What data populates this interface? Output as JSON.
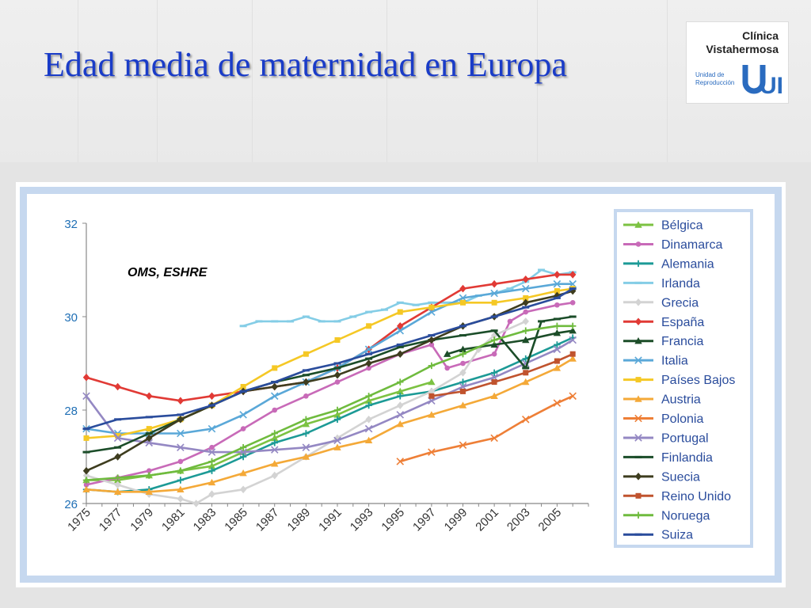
{
  "title": "Edad media de maternidad en Europa",
  "logo": {
    "line1": "Clínica",
    "line2": "Vistahermosa",
    "line3": "Unidad de Reproducción",
    "mark": "UR"
  },
  "colors": {
    "title": "#1a3cc8",
    "axis_text": "#1f6fb5",
    "frame": "#c6d8ef"
  },
  "chart_data": {
    "type": "line",
    "annotation": "OMS, ESHRE",
    "ylim": [
      26,
      32
    ],
    "yticks": [
      26,
      28,
      30,
      32
    ],
    "xlim": [
      1975,
      2007
    ],
    "xticks": [
      "1975",
      "1977",
      "1979",
      "1981",
      "1983",
      "1985",
      "1987",
      "1989",
      "1991",
      "1993",
      "1995",
      "1997",
      "1999",
      "2001",
      "2003",
      "2005"
    ],
    "grid": false,
    "legend_position": "right",
    "series": [
      {
        "name": "Bélgica",
        "color": "#7cc242",
        "marker": "triangle",
        "x": [
          1975,
          1977,
          1979,
          1981,
          1983,
          1985,
          1987,
          1989,
          1991,
          1993,
          1995,
          1997
        ],
        "values": [
          26.5,
          26.5,
          26.6,
          26.7,
          26.8,
          27.1,
          27.4,
          27.7,
          27.9,
          28.2,
          28.4,
          28.6
        ]
      },
      {
        "name": "Dinamarca",
        "color": "#c86ab8",
        "marker": "circle",
        "x": [
          1975,
          1977,
          1979,
          1981,
          1983,
          1985,
          1987,
          1989,
          1991,
          1993,
          1995,
          1997,
          1998,
          1999,
          2001,
          2002,
          2003,
          2005,
          2006
        ],
        "values": [
          26.4,
          26.55,
          26.7,
          26.9,
          27.2,
          27.6,
          28.0,
          28.3,
          28.6,
          28.9,
          29.2,
          29.4,
          28.9,
          29.0,
          29.2,
          29.9,
          30.1,
          30.25,
          30.3
        ]
      },
      {
        "name": "Alemania",
        "color": "#1c9a96",
        "marker": "plus",
        "x": [
          1975,
          1977,
          1979,
          1981,
          1983,
          1985,
          1987,
          1989,
          1991,
          1993,
          1995,
          1997,
          1999,
          2001,
          2003,
          2005,
          2006
        ],
        "values": [
          26.3,
          26.25,
          26.3,
          26.5,
          26.7,
          27.0,
          27.3,
          27.5,
          27.8,
          28.1,
          28.3,
          28.4,
          28.6,
          28.8,
          29.1,
          29.4,
          29.55
        ]
      },
      {
        "name": "Irlanda",
        "color": "#84cde6",
        "marker": "dash",
        "x": [
          1985,
          1986,
          1987,
          1988,
          1989,
          1990,
          1991,
          1992,
          1993,
          1994,
          1995,
          1996,
          1997,
          1998,
          1999,
          2000,
          2001,
          2002,
          2003,
          2004,
          2005,
          2006
        ],
        "values": [
          29.8,
          29.9,
          29.9,
          29.9,
          30.0,
          29.9,
          29.9,
          30.0,
          30.1,
          30.15,
          30.3,
          30.25,
          30.3,
          30.3,
          30.3,
          30.45,
          30.5,
          30.6,
          30.75,
          31.0,
          30.9,
          30.95
        ]
      },
      {
        "name": "Grecia",
        "color": "#d3d3d3",
        "marker": "diamond",
        "x": [
          1975,
          1977,
          1979,
          1981,
          1982,
          1983,
          1985,
          1987,
          1989,
          1991,
          1993,
          1995,
          1997,
          1999,
          2000,
          2001,
          2003
        ],
        "values": [
          26.6,
          26.4,
          26.2,
          26.1,
          26.0,
          26.2,
          26.3,
          26.6,
          27.0,
          27.4,
          27.8,
          28.1,
          28.4,
          28.8,
          29.3,
          29.6,
          29.9
        ]
      },
      {
        "name": "España",
        "color": "#e13a35",
        "marker": "diamond",
        "x": [
          1975,
          1977,
          1979,
          1981,
          1983,
          1985,
          1987,
          1989,
          1991,
          1993,
          1995,
          1997,
          1999,
          2001,
          2003,
          2005,
          2006
        ],
        "values": [
          28.7,
          28.5,
          28.3,
          28.2,
          28.3,
          28.4,
          28.5,
          28.6,
          28.9,
          29.3,
          29.8,
          30.2,
          30.6,
          30.7,
          30.8,
          30.9,
          30.9
        ]
      },
      {
        "name": "Francia",
        "color": "#1c4d28",
        "marker": "triangle",
        "x": [
          1998,
          1999,
          2001,
          2003,
          2005,
          2006
        ],
        "values": [
          29.2,
          29.3,
          29.4,
          29.5,
          29.65,
          29.7
        ]
      },
      {
        "name": "Italia",
        "color": "#5aa8d8",
        "marker": "x",
        "x": [
          1975,
          1977,
          1979,
          1981,
          1983,
          1985,
          1987,
          1989,
          1991,
          1993,
          1995,
          1997,
          1999,
          2001,
          2003,
          2005,
          2006
        ],
        "values": [
          27.6,
          27.5,
          27.5,
          27.5,
          27.6,
          27.9,
          28.3,
          28.6,
          28.9,
          29.3,
          29.7,
          30.1,
          30.4,
          30.5,
          30.6,
          30.7,
          30.7
        ]
      },
      {
        "name": "Países Bajos",
        "color": "#f5c825",
        "marker": "square",
        "x": [
          1975,
          1977,
          1979,
          1981,
          1983,
          1985,
          1987,
          1989,
          1991,
          1993,
          1995,
          1997,
          1999,
          2001,
          2003,
          2005,
          2006
        ],
        "values": [
          27.4,
          27.45,
          27.6,
          27.8,
          28.1,
          28.5,
          28.9,
          29.2,
          29.5,
          29.8,
          30.1,
          30.2,
          30.3,
          30.3,
          30.4,
          30.55,
          30.6
        ]
      },
      {
        "name": "Austria",
        "color": "#f4a938",
        "marker": "triangle",
        "x": [
          1975,
          1977,
          1979,
          1981,
          1983,
          1985,
          1987,
          1989,
          1991,
          1993,
          1995,
          1997,
          1999,
          2001,
          2003,
          2005,
          2006
        ],
        "values": [
          26.3,
          26.25,
          26.25,
          26.3,
          26.45,
          26.65,
          26.85,
          27.0,
          27.2,
          27.35,
          27.7,
          27.9,
          28.1,
          28.3,
          28.6,
          28.9,
          29.1
        ]
      },
      {
        "name": "Polonia",
        "color": "#ee7f37",
        "marker": "x",
        "x": [
          1995,
          1997,
          1999,
          2001,
          2003,
          2005,
          2006
        ],
        "values": [
          26.9,
          27.1,
          27.25,
          27.4,
          27.8,
          28.15,
          28.3
        ]
      },
      {
        "name": "Portugal",
        "color": "#9488c3",
        "marker": "x",
        "x": [
          1975,
          1977,
          1979,
          1981,
          1983,
          1985,
          1987,
          1989,
          1991,
          1993,
          1995,
          1997,
          1999,
          2001,
          2003,
          2005,
          2006
        ],
        "values": [
          28.3,
          27.4,
          27.3,
          27.2,
          27.1,
          27.1,
          27.15,
          27.2,
          27.35,
          27.6,
          27.9,
          28.2,
          28.5,
          28.7,
          29.0,
          29.3,
          29.5
        ]
      },
      {
        "name": "Finlandia",
        "color": "#1b4d29",
        "marker": "dash",
        "x": [
          1975,
          1977,
          1979,
          1981,
          1983,
          1985,
          1987,
          1989,
          1991,
          1993,
          1995,
          1997,
          1999,
          2001,
          2003,
          2004,
          2005,
          2006
        ],
        "values": [
          27.1,
          27.2,
          27.5,
          27.8,
          28.1,
          28.4,
          28.6,
          28.75,
          28.9,
          29.1,
          29.35,
          29.5,
          29.6,
          29.7,
          28.9,
          29.9,
          29.95,
          30.0
        ]
      },
      {
        "name": "Suecia",
        "color": "#3e3d1f",
        "marker": "diamond",
        "x": [
          1975,
          1977,
          1979,
          1981,
          1983,
          1985,
          1987,
          1989,
          1991,
          1993,
          1995,
          1997,
          1999,
          2001,
          2003,
          2005,
          2006
        ],
        "values": [
          26.7,
          27.0,
          27.4,
          27.8,
          28.1,
          28.4,
          28.5,
          28.6,
          28.75,
          29.0,
          29.2,
          29.5,
          29.8,
          30.0,
          30.3,
          30.45,
          30.55
        ]
      },
      {
        "name": "Reino Unido",
        "color": "#c0532e",
        "marker": "square",
        "x": [
          1997,
          1999,
          2001,
          2003,
          2005,
          2006
        ],
        "values": [
          28.3,
          28.4,
          28.6,
          28.8,
          29.05,
          29.2
        ]
      },
      {
        "name": "Noruega",
        "color": "#6fbb3e",
        "marker": "plus",
        "x": [
          1975,
          1977,
          1979,
          1981,
          1983,
          1985,
          1987,
          1989,
          1991,
          1993,
          1995,
          1997,
          1999,
          2001,
          2003,
          2005,
          2006
        ],
        "values": [
          26.5,
          26.55,
          26.6,
          26.7,
          26.9,
          27.2,
          27.5,
          27.8,
          28.0,
          28.3,
          28.6,
          28.95,
          29.2,
          29.5,
          29.7,
          29.8,
          29.8
        ]
      },
      {
        "name": "Suiza",
        "color": "#2a4c9c",
        "marker": "dash",
        "x": [
          1975,
          1977,
          1979,
          1981,
          1983,
          1985,
          1987,
          1989,
          1991,
          1993,
          1995,
          1997,
          1999,
          2001,
          2003,
          2005,
          2006
        ],
        "values": [
          27.6,
          27.8,
          27.85,
          27.9,
          28.1,
          28.4,
          28.6,
          28.85,
          29.0,
          29.2,
          29.4,
          29.6,
          29.8,
          30.0,
          30.2,
          30.4,
          30.6
        ]
      }
    ]
  }
}
